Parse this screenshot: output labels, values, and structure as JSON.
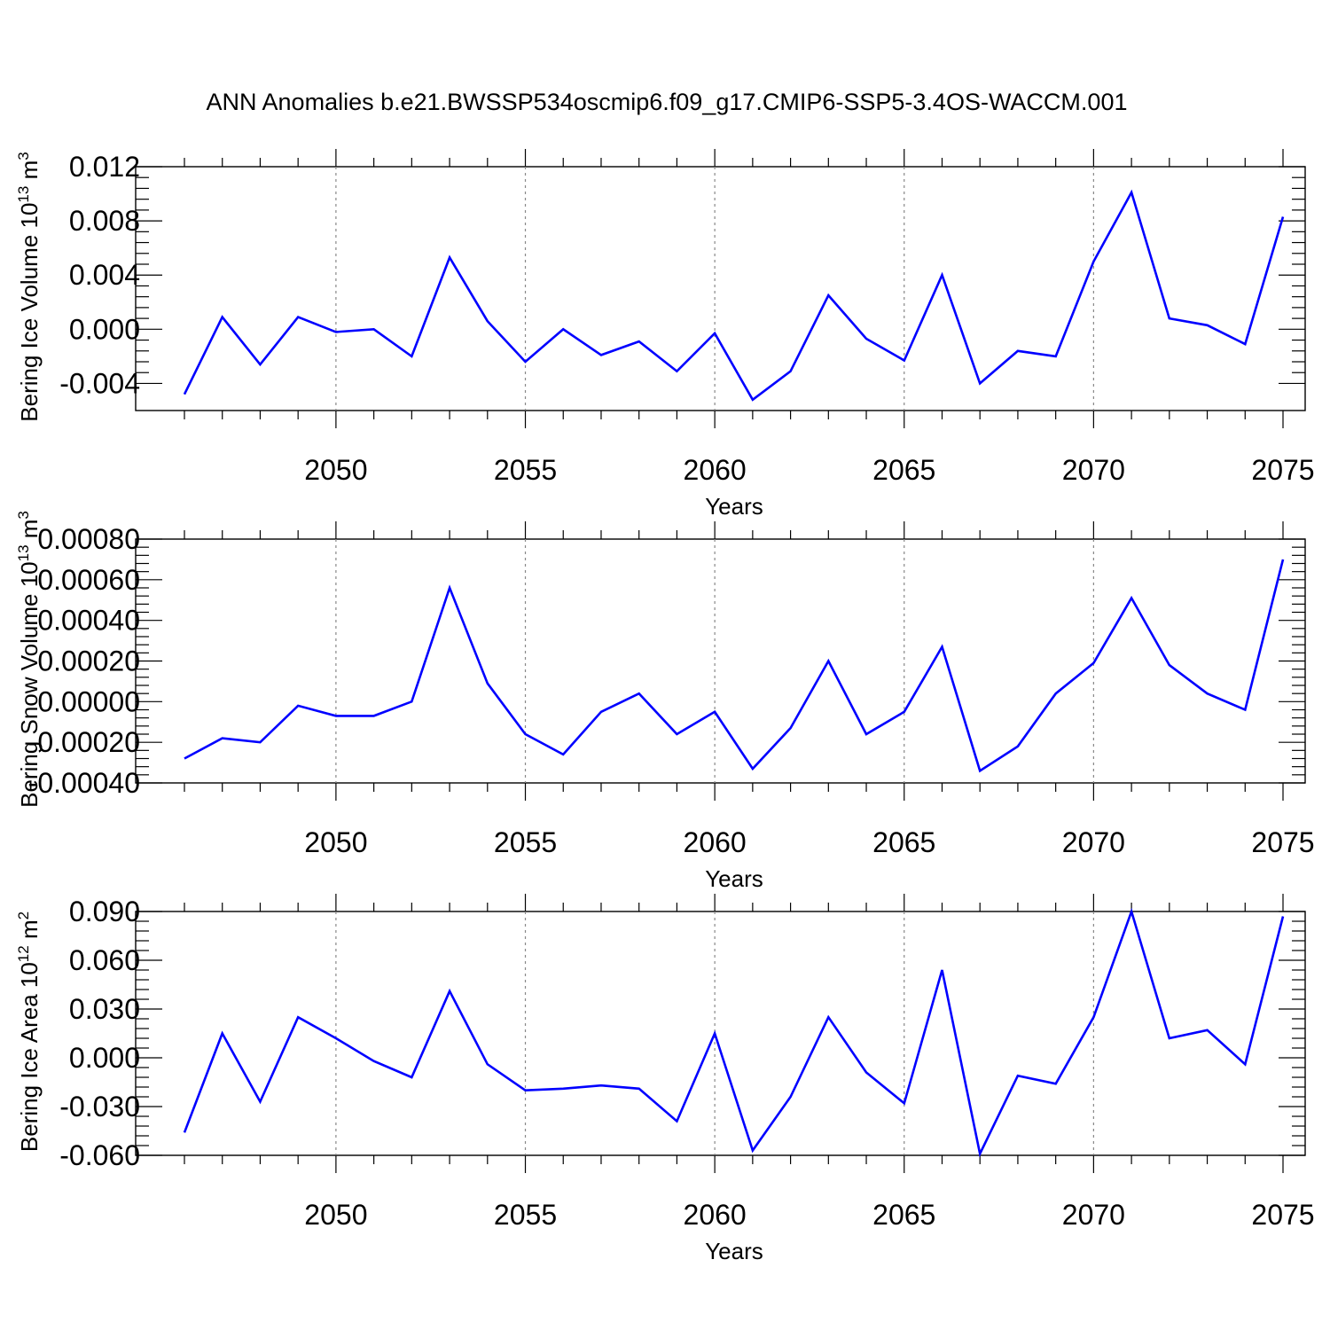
{
  "title": "ANN Anomalies b.e21.BWSSP534oscmip6.f09_g17.CMIP6-SSP5-3.4OS-WACCM.001",
  "colors": {
    "series": "#0000ff",
    "grid": "#888888",
    "axes": "#000000"
  },
  "chart_data": [
    {
      "type": "line",
      "ylabel_main": "Bering Ice Volume 10",
      "ylabel_sup": "13",
      "ylabel_unit": " m",
      "ylabel_unit_sup": "3",
      "xlabel": "Years",
      "xlim": [
        2046,
        2075
      ],
      "ylim": [
        -0.006,
        0.012
      ],
      "xticks": [
        2050,
        2055,
        2060,
        2065,
        2070,
        2075
      ],
      "xtick_labels": [
        "2050",
        "2055",
        "2060",
        "2065",
        "2070",
        "2075"
      ],
      "yticks": [
        -0.004,
        0.0,
        0.004,
        0.008,
        0.012
      ],
      "ytick_labels": [
        "-0.004",
        "0.000",
        "0.004",
        "0.008",
        "0.012"
      ],
      "grid": "x-dashed",
      "x": [
        2046,
        2047,
        2048,
        2049,
        2050,
        2051,
        2052,
        2053,
        2054,
        2055,
        2056,
        2057,
        2058,
        2059,
        2060,
        2061,
        2062,
        2063,
        2064,
        2065,
        2066,
        2067,
        2068,
        2069,
        2070,
        2071,
        2072,
        2073,
        2074,
        2075
      ],
      "values": [
        -0.0048,
        0.0009,
        -0.0026,
        0.0009,
        -0.0002,
        0.0,
        -0.002,
        0.0053,
        0.0006,
        -0.0024,
        0.0,
        -0.0019,
        -0.0009,
        -0.0031,
        -0.0003,
        -0.0052,
        -0.0031,
        0.0025,
        -0.0007,
        -0.0023,
        0.004,
        -0.004,
        -0.0016,
        -0.002,
        0.005,
        0.0101,
        0.0008,
        0.0003,
        -0.0011,
        0.0083
      ]
    },
    {
      "type": "line",
      "ylabel_main": "Bering Snow Volume 10",
      "ylabel_sup": "13",
      "ylabel_unit": " m",
      "ylabel_unit_sup": "3",
      "xlabel": "Years",
      "xlim": [
        2046,
        2075
      ],
      "ylim": [
        -0.0004,
        0.0008
      ],
      "xticks": [
        2050,
        2055,
        2060,
        2065,
        2070,
        2075
      ],
      "xtick_labels": [
        "2050",
        "2055",
        "2060",
        "2065",
        "2070",
        "2075"
      ],
      "yticks": [
        -0.0004,
        -0.0002,
        0.0,
        0.0002,
        0.0004,
        0.0006,
        0.0008
      ],
      "ytick_labels": [
        "-0.00040",
        "-0.00020",
        "0.00000",
        "0.00020",
        "0.00040",
        "0.00060",
        "0.00080"
      ],
      "grid": "x-dashed",
      "x": [
        2046,
        2047,
        2048,
        2049,
        2050,
        2051,
        2052,
        2053,
        2054,
        2055,
        2056,
        2057,
        2058,
        2059,
        2060,
        2061,
        2062,
        2063,
        2064,
        2065,
        2066,
        2067,
        2068,
        2069,
        2070,
        2071,
        2072,
        2073,
        2074,
        2075
      ],
      "values": [
        -0.00028,
        -0.00018,
        -0.0002,
        -2e-05,
        -7e-05,
        -7e-05,
        0.0,
        0.00056,
        9e-05,
        -0.00016,
        -0.00026,
        -5e-05,
        4e-05,
        -0.00016,
        -5e-05,
        -0.00033,
        -0.00013,
        0.0002,
        -0.00016,
        -5e-05,
        0.00027,
        -0.00034,
        -0.00022,
        4e-05,
        0.00019,
        0.00051,
        0.00018,
        4e-05,
        -4e-05,
        0.0007
      ]
    },
    {
      "type": "line",
      "ylabel_main": "Bering Ice Area 10",
      "ylabel_sup": "12",
      "ylabel_unit": " m",
      "ylabel_unit_sup": "2",
      "xlabel": "Years",
      "xlim": [
        2046,
        2075
      ],
      "ylim": [
        -0.06,
        0.09
      ],
      "xticks": [
        2050,
        2055,
        2060,
        2065,
        2070,
        2075
      ],
      "xtick_labels": [
        "2050",
        "2055",
        "2060",
        "2065",
        "2070",
        "2075"
      ],
      "yticks": [
        -0.06,
        -0.03,
        0.0,
        0.03,
        0.06,
        0.09
      ],
      "ytick_labels": [
        "-0.060",
        "-0.030",
        "0.000",
        "0.030",
        "0.060",
        "0.090"
      ],
      "grid": "x-dashed",
      "x": [
        2046,
        2047,
        2048,
        2049,
        2050,
        2051,
        2052,
        2053,
        2054,
        2055,
        2056,
        2057,
        2058,
        2059,
        2060,
        2061,
        2062,
        2063,
        2064,
        2065,
        2066,
        2067,
        2068,
        2069,
        2070,
        2071,
        2072,
        2073,
        2074,
        2075
      ],
      "values": [
        -0.046,
        0.015,
        -0.027,
        0.025,
        0.012,
        -0.002,
        -0.012,
        0.041,
        -0.004,
        -0.02,
        -0.019,
        -0.017,
        -0.019,
        -0.039,
        0.015,
        -0.057,
        -0.024,
        0.025,
        -0.009,
        -0.028,
        0.054,
        -0.059,
        -0.011,
        -0.016,
        0.025,
        0.09,
        0.012,
        0.017,
        -0.004,
        0.087
      ]
    }
  ]
}
